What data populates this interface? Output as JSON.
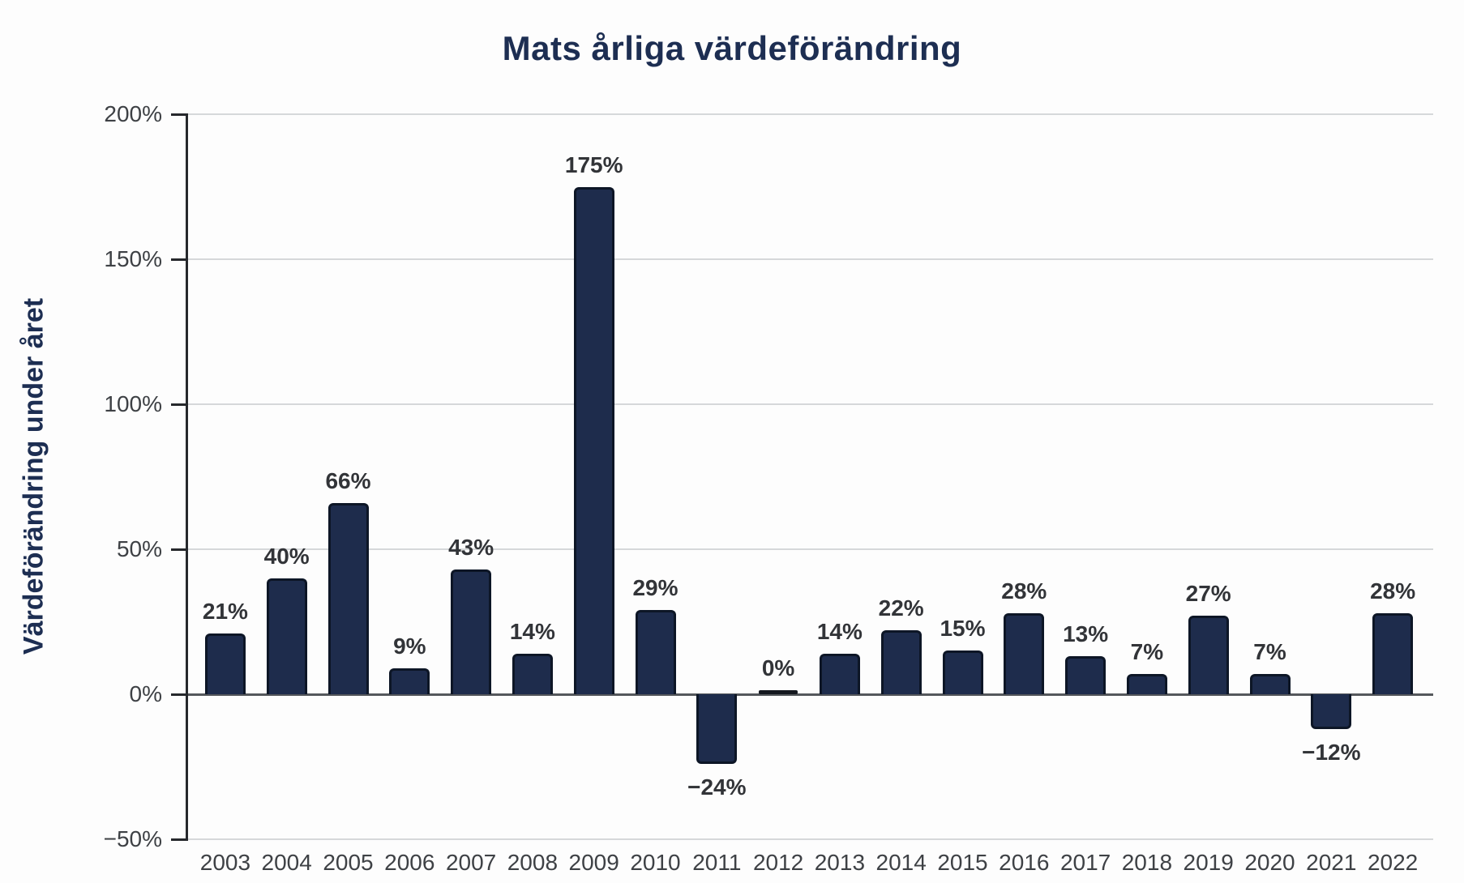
{
  "chart": {
    "colors": {
      "background": "#fdfdfd",
      "title": "#1d2e52",
      "bar_fill": "#1e2c4c",
      "bar_border": "#0d1626",
      "zero_bar": "#14181f",
      "value_label": "#323438",
      "tick_label": "#3e4145",
      "gridline": "#d6d8da",
      "zero_line": "#55585c",
      "axis": "#26282c"
    }
  },
  "chart_data": {
    "type": "bar",
    "title": "Mats årliga värdeförändring",
    "xlabel": "",
    "ylabel": "Värdeförändring under året",
    "categories": [
      "2003",
      "2004",
      "2005",
      "2006",
      "2007",
      "2008",
      "2009",
      "2010",
      "2011",
      "2012",
      "2013",
      "2014",
      "2015",
      "2016",
      "2017",
      "2018",
      "2019",
      "2020",
      "2021",
      "2022"
    ],
    "values": [
      21,
      40,
      66,
      9,
      43,
      14,
      175,
      29,
      -24,
      0,
      14,
      22,
      15,
      28,
      13,
      7,
      27,
      7,
      -12,
      28
    ],
    "bar_labels": [
      "21%",
      "40%",
      "66%",
      "9%",
      "43%",
      "14%",
      "175%",
      "29%",
      "−24%",
      "0%",
      "14%",
      "22%",
      "15%",
      "28%",
      "13%",
      "7%",
      "27%",
      "7%",
      "−12%",
      "28%"
    ],
    "ylim": [
      -50,
      200
    ],
    "yticks": [
      {
        "value": 200,
        "label": "200%"
      },
      {
        "value": 150,
        "label": "150%"
      },
      {
        "value": 100,
        "label": "100%"
      },
      {
        "value": 50,
        "label": "50%"
      },
      {
        "value": 0,
        "label": "0%"
      },
      {
        "value": -50,
        "label": "−50%"
      }
    ],
    "grid": true,
    "legend": "none",
    "series_name": "Mats årliga värdeförändring"
  }
}
